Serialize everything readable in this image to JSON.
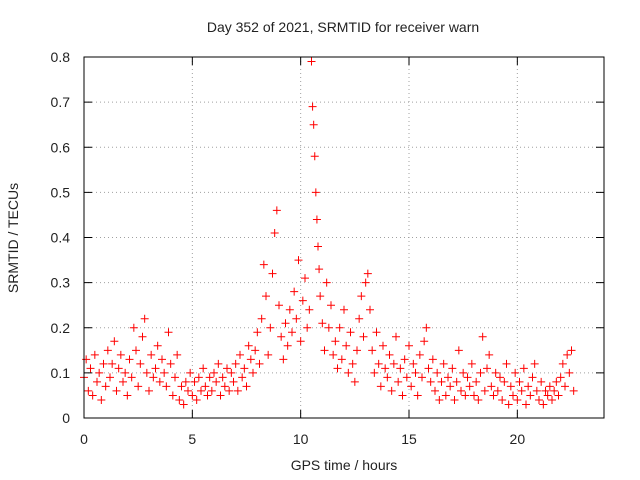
{
  "chart_data": {
    "type": "scatter",
    "title": "Day 352 of 2021, SRMTID for receiver warn",
    "xlabel": "GPS time / hours",
    "ylabel": "SRMTID / TECUs",
    "xlim": [
      0,
      24
    ],
    "ylim": [
      0,
      0.8
    ],
    "xticks": [
      0,
      5,
      10,
      15,
      20
    ],
    "xtick_labels": [
      "0",
      "5",
      "10",
      "15",
      "20"
    ],
    "yticks": [
      0,
      0.1,
      0.2,
      0.3,
      0.4,
      0.5,
      0.6,
      0.7,
      0.8
    ],
    "ytick_labels": [
      "0",
      "0.1",
      "0.2",
      "0.3",
      "0.4",
      "0.5",
      "0.6",
      "0.7",
      "0.8"
    ],
    "grid": true,
    "marker": "+",
    "color": "#ff0000",
    "series": [
      {
        "name": "SRMTID",
        "points": [
          [
            0.0,
            0.09
          ],
          [
            0.1,
            0.13
          ],
          [
            0.2,
            0.06
          ],
          [
            0.3,
            0.11
          ],
          [
            0.4,
            0.05
          ],
          [
            0.5,
            0.14
          ],
          [
            0.6,
            0.08
          ],
          [
            0.7,
            0.1
          ],
          [
            0.8,
            0.04
          ],
          [
            0.9,
            0.12
          ],
          [
            1.0,
            0.07
          ],
          [
            1.1,
            0.15
          ],
          [
            1.2,
            0.09
          ],
          [
            1.3,
            0.12
          ],
          [
            1.4,
            0.17
          ],
          [
            1.5,
            0.06
          ],
          [
            1.6,
            0.11
          ],
          [
            1.7,
            0.14
          ],
          [
            1.8,
            0.08
          ],
          [
            1.9,
            0.1
          ],
          [
            2.0,
            0.05
          ],
          [
            2.1,
            0.13
          ],
          [
            2.2,
            0.09
          ],
          [
            2.3,
            0.2
          ],
          [
            2.4,
            0.15
          ],
          [
            2.5,
            0.07
          ],
          [
            2.6,
            0.12
          ],
          [
            2.7,
            0.18
          ],
          [
            2.8,
            0.22
          ],
          [
            2.9,
            0.1
          ],
          [
            3.0,
            0.06
          ],
          [
            3.1,
            0.14
          ],
          [
            3.2,
            0.09
          ],
          [
            3.3,
            0.11
          ],
          [
            3.4,
            0.16
          ],
          [
            3.5,
            0.08
          ],
          [
            3.6,
            0.13
          ],
          [
            3.7,
            0.1
          ],
          [
            3.8,
            0.07
          ],
          [
            3.9,
            0.19
          ],
          [
            4.0,
            0.12
          ],
          [
            4.1,
            0.05
          ],
          [
            4.2,
            0.09
          ],
          [
            4.3,
            0.14
          ],
          [
            4.4,
            0.04
          ],
          [
            4.5,
            0.07
          ],
          [
            4.6,
            0.03
          ],
          [
            4.7,
            0.08
          ],
          [
            4.8,
            0.06
          ],
          [
            4.9,
            0.1
          ],
          [
            5.0,
            0.05
          ],
          [
            5.1,
            0.08
          ],
          [
            5.2,
            0.04
          ],
          [
            5.3,
            0.09
          ],
          [
            5.4,
            0.06
          ],
          [
            5.5,
            0.11
          ],
          [
            5.6,
            0.07
          ],
          [
            5.7,
            0.05
          ],
          [
            5.8,
            0.09
          ],
          [
            5.9,
            0.06
          ],
          [
            6.0,
            0.1
          ],
          [
            6.1,
            0.08
          ],
          [
            6.2,
            0.12
          ],
          [
            6.3,
            0.05
          ],
          [
            6.4,
            0.09
          ],
          [
            6.5,
            0.07
          ],
          [
            6.6,
            0.11
          ],
          [
            6.7,
            0.06
          ],
          [
            6.8,
            0.1
          ],
          [
            6.9,
            0.08
          ],
          [
            7.0,
            0.12
          ],
          [
            7.1,
            0.06
          ],
          [
            7.2,
            0.14
          ],
          [
            7.3,
            0.09
          ],
          [
            7.4,
            0.11
          ],
          [
            7.5,
            0.07
          ],
          [
            7.6,
            0.16
          ],
          [
            7.7,
            0.13
          ],
          [
            7.8,
            0.1
          ],
          [
            7.9,
            0.15
          ],
          [
            8.0,
            0.19
          ],
          [
            8.1,
            0.12
          ],
          [
            8.2,
            0.22
          ],
          [
            8.3,
            0.34
          ],
          [
            8.4,
            0.27
          ],
          [
            8.5,
            0.14
          ],
          [
            8.6,
            0.2
          ],
          [
            8.7,
            0.32
          ],
          [
            8.8,
            0.41
          ],
          [
            8.9,
            0.46
          ],
          [
            9.0,
            0.25
          ],
          [
            9.1,
            0.18
          ],
          [
            9.2,
            0.13
          ],
          [
            9.3,
            0.21
          ],
          [
            9.4,
            0.16
          ],
          [
            9.5,
            0.24
          ],
          [
            9.6,
            0.19
          ],
          [
            9.7,
            0.28
          ],
          [
            9.8,
            0.22
          ],
          [
            9.9,
            0.35
          ],
          [
            10.0,
            0.17
          ],
          [
            10.1,
            0.26
          ],
          [
            10.2,
            0.31
          ],
          [
            10.3,
            0.2
          ],
          [
            10.4,
            0.24
          ],
          [
            10.5,
            0.79
          ],
          [
            10.55,
            0.69
          ],
          [
            10.6,
            0.65
          ],
          [
            10.65,
            0.58
          ],
          [
            10.7,
            0.5
          ],
          [
            10.75,
            0.44
          ],
          [
            10.8,
            0.38
          ],
          [
            10.85,
            0.33
          ],
          [
            10.9,
            0.27
          ],
          [
            11.0,
            0.21
          ],
          [
            11.1,
            0.15
          ],
          [
            11.2,
            0.3
          ],
          [
            11.3,
            0.2
          ],
          [
            11.4,
            0.25
          ],
          [
            11.5,
            0.14
          ],
          [
            11.6,
            0.17
          ],
          [
            11.7,
            0.11
          ],
          [
            11.8,
            0.2
          ],
          [
            11.9,
            0.13
          ],
          [
            12.0,
            0.24
          ],
          [
            12.1,
            0.16
          ],
          [
            12.2,
            0.1
          ],
          [
            12.3,
            0.19
          ],
          [
            12.4,
            0.12
          ],
          [
            12.5,
            0.08
          ],
          [
            12.6,
            0.15
          ],
          [
            12.7,
            0.22
          ],
          [
            12.8,
            0.27
          ],
          [
            12.9,
            0.18
          ],
          [
            13.0,
            0.3
          ],
          [
            13.1,
            0.32
          ],
          [
            13.2,
            0.24
          ],
          [
            13.3,
            0.15
          ],
          [
            13.4,
            0.1
          ],
          [
            13.5,
            0.19
          ],
          [
            13.6,
            0.12
          ],
          [
            13.7,
            0.07
          ],
          [
            13.8,
            0.16
          ],
          [
            13.9,
            0.11
          ],
          [
            14.0,
            0.09
          ],
          [
            14.1,
            0.14
          ],
          [
            14.2,
            0.06
          ],
          [
            14.3,
            0.12
          ],
          [
            14.4,
            0.18
          ],
          [
            14.5,
            0.08
          ],
          [
            14.6,
            0.11
          ],
          [
            14.7,
            0.05
          ],
          [
            14.8,
            0.13
          ],
          [
            14.9,
            0.09
          ],
          [
            15.0,
            0.16
          ],
          [
            15.1,
            0.07
          ],
          [
            15.2,
            0.12
          ],
          [
            15.3,
            0.1
          ],
          [
            15.4,
            0.05
          ],
          [
            15.5,
            0.14
          ],
          [
            15.6,
            0.09
          ],
          [
            15.7,
            0.17
          ],
          [
            15.8,
            0.2
          ],
          [
            15.9,
            0.11
          ],
          [
            16.0,
            0.08
          ],
          [
            16.1,
            0.13
          ],
          [
            16.2,
            0.06
          ],
          [
            16.3,
            0.1
          ],
          [
            16.4,
            0.04
          ],
          [
            16.5,
            0.08
          ],
          [
            16.6,
            0.12
          ],
          [
            16.7,
            0.05
          ],
          [
            16.8,
            0.09
          ],
          [
            16.9,
            0.07
          ],
          [
            17.0,
            0.11
          ],
          [
            17.1,
            0.04
          ],
          [
            17.2,
            0.08
          ],
          [
            17.3,
            0.15
          ],
          [
            17.4,
            0.06
          ],
          [
            17.5,
            0.1
          ],
          [
            17.6,
            0.05
          ],
          [
            17.7,
            0.09
          ],
          [
            17.8,
            0.07
          ],
          [
            17.9,
            0.12
          ],
          [
            18.0,
            0.05
          ],
          [
            18.1,
            0.08
          ],
          [
            18.2,
            0.04
          ],
          [
            18.3,
            0.1
          ],
          [
            18.4,
            0.18
          ],
          [
            18.5,
            0.06
          ],
          [
            18.6,
            0.11
          ],
          [
            18.7,
            0.14
          ],
          [
            18.8,
            0.07
          ],
          [
            18.9,
            0.05
          ],
          [
            19.0,
            0.1
          ],
          [
            19.1,
            0.06
          ],
          [
            19.2,
            0.09
          ],
          [
            19.3,
            0.04
          ],
          [
            19.4,
            0.08
          ],
          [
            19.5,
            0.12
          ],
          [
            19.6,
            0.03
          ],
          [
            19.7,
            0.07
          ],
          [
            19.8,
            0.05
          ],
          [
            19.9,
            0.1
          ],
          [
            20.0,
            0.04
          ],
          [
            20.1,
            0.08
          ],
          [
            20.2,
            0.06
          ],
          [
            20.3,
            0.11
          ],
          [
            20.4,
            0.03
          ],
          [
            20.5,
            0.07
          ],
          [
            20.6,
            0.05
          ],
          [
            20.7,
            0.09
          ],
          [
            20.8,
            0.12
          ],
          [
            20.9,
            0.06
          ],
          [
            21.0,
            0.04
          ],
          [
            21.1,
            0.08
          ],
          [
            21.2,
            0.03
          ],
          [
            21.3,
            0.06
          ],
          [
            21.4,
            0.05
          ],
          [
            21.5,
            0.07
          ],
          [
            21.6,
            0.04
          ],
          [
            21.7,
            0.06
          ],
          [
            21.8,
            0.08
          ],
          [
            21.9,
            0.05
          ],
          [
            22.0,
            0.09
          ],
          [
            22.1,
            0.12
          ],
          [
            22.2,
            0.07
          ],
          [
            22.3,
            0.14
          ],
          [
            22.4,
            0.1
          ],
          [
            22.5,
            0.15
          ],
          [
            22.6,
            0.06
          ]
        ]
      }
    ]
  }
}
